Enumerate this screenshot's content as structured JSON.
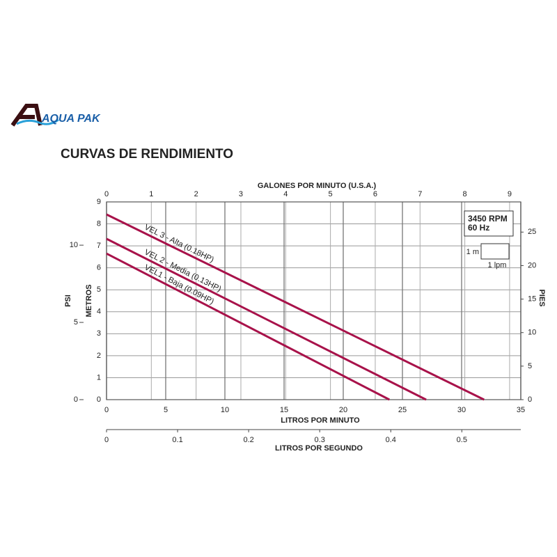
{
  "logo": "AQUA PAK",
  "chart_data": {
    "type": "line",
    "title": "CURVAS DE RENDIMIENTO",
    "xlabel": "LITROS POR MINUTO",
    "xlim": [
      0,
      35
    ],
    "xticks": [
      0,
      5,
      10,
      15,
      20,
      25,
      30,
      35
    ],
    "top_axis": {
      "label": "GALONES POR MINUTO (U.S.A.)",
      "lim": [
        0,
        9.25
      ],
      "ticks": [
        0,
        1,
        2,
        3,
        4,
        5,
        6,
        7,
        8,
        9
      ]
    },
    "bottom2_axis": {
      "label": "LITROS POR SEGUNDO",
      "lim": [
        0,
        0.583
      ],
      "ticks": [
        0,
        0.1,
        0.2,
        0.3,
        0.4,
        0.5
      ]
    },
    "ylabel": "METROS",
    "ylim": [
      0,
      9
    ],
    "yticks": [
      0,
      1,
      2,
      3,
      4,
      5,
      6,
      7,
      8,
      9
    ],
    "psi_axis": {
      "label": "PSI",
      "lim": [
        0,
        12.8
      ],
      "ticks": [
        0,
        5,
        10
      ]
    },
    "y2label": "PIES",
    "y2lim": [
      0,
      29.5
    ],
    "y2ticks": [
      0,
      5,
      10,
      15,
      20,
      25
    ],
    "grid": true,
    "annotations": [
      "3450 RPM",
      "60 Hz",
      "1 m",
      "1 lpm"
    ],
    "series": [
      {
        "name": "VEL 3 - Alta (0.18HP)",
        "color": "#a8124a",
        "x": [
          0,
          31.9
        ],
        "values": [
          8.43,
          0
        ]
      },
      {
        "name": "VEL 2 - Media (0.13HP)",
        "color": "#a8124a",
        "x": [
          0,
          27.0
        ],
        "values": [
          7.32,
          0
        ]
      },
      {
        "name": "VEL1 - Baja (0.09HP)",
        "color": "#a8124a",
        "x": [
          0,
          23.9
        ],
        "values": [
          6.65,
          0
        ]
      }
    ]
  }
}
